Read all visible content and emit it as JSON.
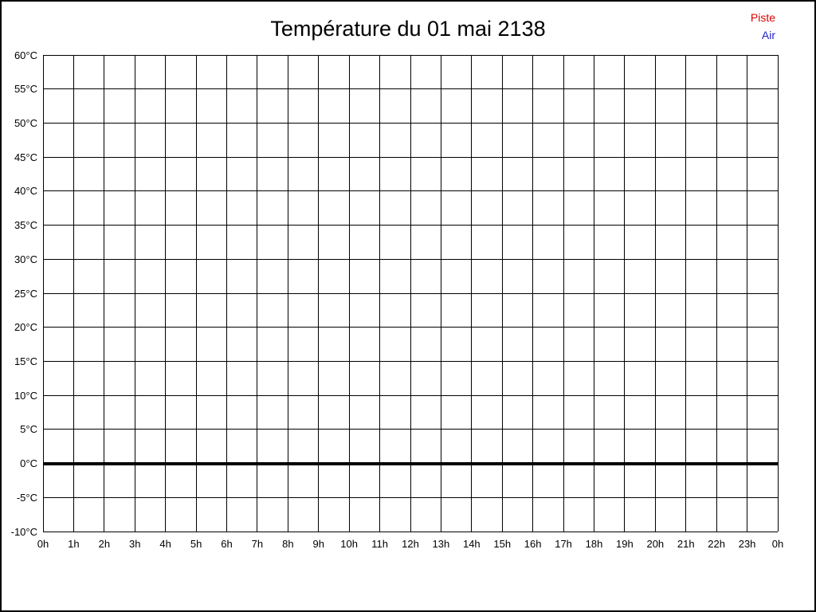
{
  "chart_data": {
    "type": "line",
    "title": "Température du 01 mai 2138",
    "xlabel": "",
    "ylabel": "",
    "x_tick_labels": [
      "0h",
      "1h",
      "2h",
      "3h",
      "4h",
      "5h",
      "6h",
      "7h",
      "8h",
      "9h",
      "10h",
      "11h",
      "12h",
      "13h",
      "14h",
      "15h",
      "16h",
      "17h",
      "18h",
      "19h",
      "20h",
      "21h",
      "22h",
      "23h",
      "0h"
    ],
    "y_tick_values": [
      60,
      55,
      50,
      45,
      40,
      35,
      30,
      25,
      20,
      15,
      10,
      5,
      0,
      -5,
      -10
    ],
    "y_tick_labels": [
      "60°C",
      "55°C",
      "50°C",
      "45°C",
      "40°C",
      "35°C",
      "30°C",
      "25°C",
      "20°C",
      "15°C",
      "10°C",
      "5°C",
      "0°C",
      "-5°C",
      "-10°C"
    ],
    "ylim": [
      -10,
      60
    ],
    "grid": true,
    "grid_color": "#000000",
    "zero_line": {
      "value": 0,
      "color": "#000000"
    },
    "legend": {
      "position": "top-right",
      "entries": [
        {
          "label": "Piste",
          "color": "#dd0000"
        },
        {
          "label": "Air",
          "color": "#2222cc"
        }
      ]
    },
    "series": [
      {
        "name": "Piste",
        "color": "#dd0000",
        "x": [],
        "values": []
      },
      {
        "name": "Air",
        "color": "#2222cc",
        "x": [],
        "values": []
      }
    ]
  }
}
